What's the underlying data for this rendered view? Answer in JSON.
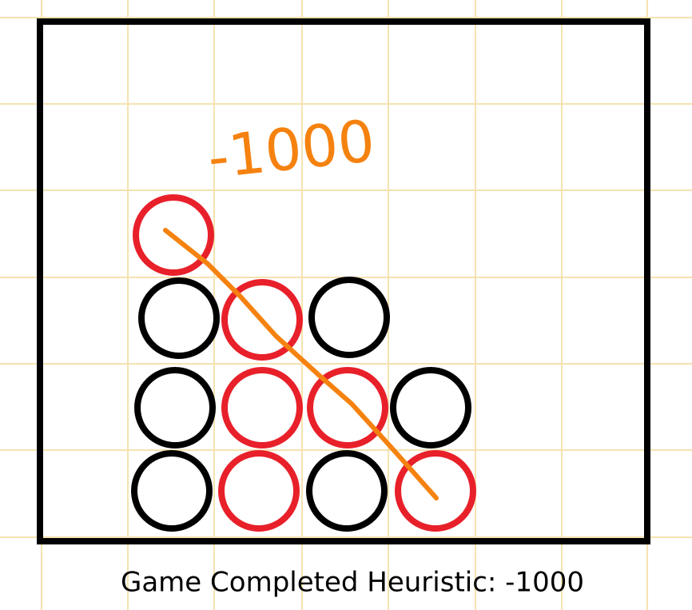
{
  "annotation": "-1000",
  "caption": "Game Completed Heuristic: -1000"
}
